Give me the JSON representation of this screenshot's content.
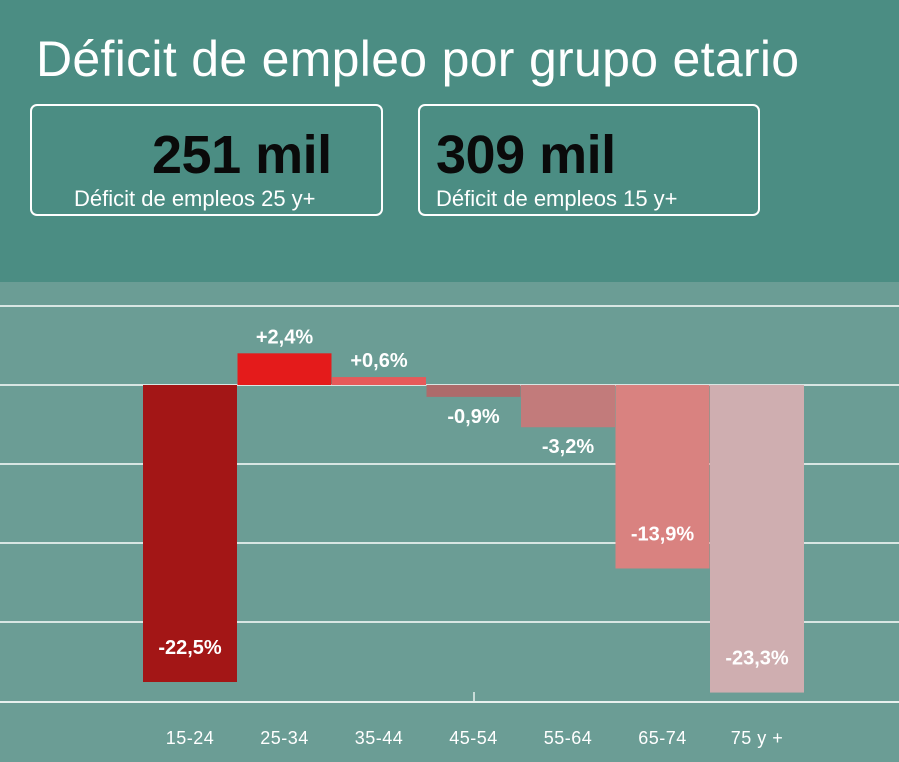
{
  "title": "Déficit de empleo por grupo etario",
  "kpis": [
    {
      "value": "251 mil",
      "label": "Déficit de empleos 25 y+"
    },
    {
      "value": "309 mil",
      "label": "Déficit de empleos 15 y+"
    }
  ],
  "colors": {
    "header_bg": "#4b8d83",
    "chart_bg": "#6b9d95",
    "gridline": "#d8e6e3",
    "bars": [
      "#a31616",
      "#e41b1b",
      "#e65a5a",
      "#ad6b6b",
      "#c27b7b",
      "#d98280",
      "#cfaeb0"
    ]
  },
  "chart_data": {
    "type": "bar",
    "title": "Déficit de empleo por grupo etario",
    "xlabel": "",
    "ylabel": "",
    "categories": [
      "15-24",
      "25-34",
      "35-44",
      "45-54",
      "55-64",
      "65-74",
      "75 y +"
    ],
    "values": [
      -22.5,
      2.4,
      0.6,
      -0.9,
      -3.2,
      -13.9,
      -23.3
    ],
    "data_labels": [
      "-22,5%",
      "+2,4%",
      "+0,6%",
      "-0,9%",
      "-3,2%",
      "-13,9%",
      "-23,3%"
    ],
    "ylim": [
      -24.2,
      6
    ],
    "grid": true,
    "legend": "none"
  }
}
